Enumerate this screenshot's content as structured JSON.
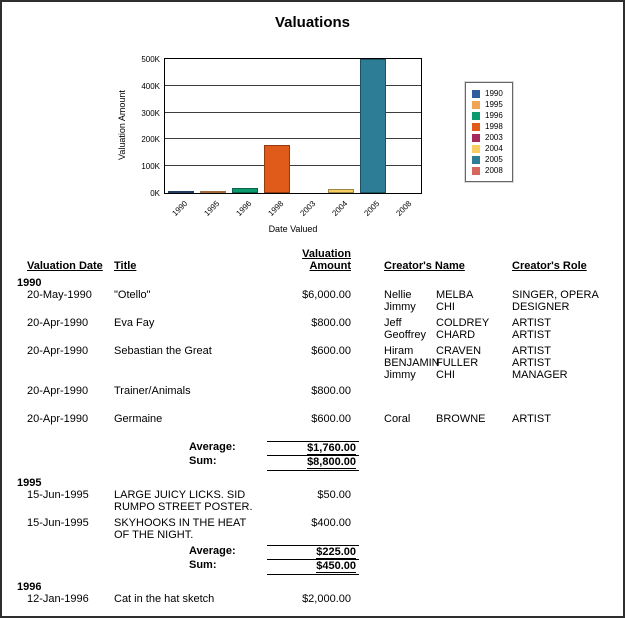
{
  "report": {
    "title": "Valuations"
  },
  "chart_data": {
    "type": "bar",
    "title": "Valuations",
    "xlabel": "Date Valued",
    "ylabel": "Valuation Amount",
    "categories": [
      "1990",
      "1995",
      "1996",
      "1998",
      "2003",
      "2004",
      "2005",
      "2008"
    ],
    "values": [
      8800,
      450,
      18000,
      180000,
      0,
      15000,
      500000,
      0
    ],
    "bar_colors": [
      "#2e5f9c",
      "#f2a456",
      "#0b9a6e",
      "#e05a1a",
      "#a62a5b",
      "#f8ce63",
      "#2e7d96",
      "#d4685c"
    ],
    "ylim": [
      0,
      500000
    ],
    "ytick_labels": [
      "0K",
      "100K",
      "200K",
      "300K",
      "400K",
      "500K"
    ],
    "grid": true,
    "legend": {
      "position": "right",
      "entries": [
        {
          "label": "1990",
          "color": "#2e5f9c"
        },
        {
          "label": "1995",
          "color": "#f2a456"
        },
        {
          "label": "1996",
          "color": "#0b9a6e"
        },
        {
          "label": "1998",
          "color": "#e05a1a"
        },
        {
          "label": "2003",
          "color": "#a62a5b"
        },
        {
          "label": "2004",
          "color": "#f8ce63"
        },
        {
          "label": "2005",
          "color": "#2e7d96"
        },
        {
          "label": "2008",
          "color": "#d4685c"
        }
      ]
    }
  },
  "table": {
    "headers": {
      "date": "Valuation Date",
      "title": "Title",
      "amount": "Valuation Amount",
      "creator_name": "Creator's Name",
      "creator_role": "Creator's Role"
    },
    "summary_labels": {
      "average": "Average:",
      "sum": "Sum:"
    },
    "groups": [
      {
        "year": "1990",
        "rows": [
          {
            "date": "20-May-1990",
            "title": "\"Otello\"",
            "amount": "$6,000.00",
            "creators": [
              {
                "first": "Nellie",
                "last": "MELBA",
                "role": "SINGER, OPERA"
              },
              {
                "first": "Jimmy",
                "last": "CHI",
                "role": "DESIGNER"
              }
            ]
          },
          {
            "date": "20-Apr-1990",
            "title": "Eva Fay",
            "amount": "$800.00",
            "creators": [
              {
                "first": "Jeff",
                "last": "COLDREY",
                "role": "ARTIST"
              },
              {
                "first": "Geoffrey",
                "last": "CHARD",
                "role": "ARTIST"
              }
            ]
          },
          {
            "date": "20-Apr-1990",
            "title": "Sebastian the Great",
            "amount": "$600.00",
            "creators": [
              {
                "first": "Hiram",
                "last": "CRAVEN",
                "role": "ARTIST"
              },
              {
                "first": "BENJAMIN",
                "last": "FULLER",
                "role": "ARTIST"
              },
              {
                "first": "Jimmy",
                "last": "CHI",
                "role": "MANAGER"
              }
            ]
          },
          {
            "date": "20-Apr-1990",
            "title": "Trainer/Animals",
            "amount": "$800.00",
            "creators": []
          },
          {
            "date": "20-Apr-1990",
            "title": "Germaine",
            "amount": "$600.00",
            "creators": [
              {
                "first": "Coral",
                "last": "BROWNE",
                "role": "ARTIST"
              }
            ]
          }
        ],
        "average": "$1,760.00",
        "sum": "$8,800.00"
      },
      {
        "year": "1995",
        "rows": [
          {
            "date": "15-Jun-1995",
            "title": "LARGE JUICY LICKS. SID RUMPO STREET POSTER.",
            "amount": "$50.00",
            "creators": []
          },
          {
            "date": "15-Jun-1995",
            "title": "SKYHOOKS IN THE HEAT OF THE NIGHT.",
            "amount": "$400.00",
            "creators": []
          }
        ],
        "average": "$225.00",
        "sum": "$450.00"
      },
      {
        "year": "1996",
        "rows": [
          {
            "date": "12-Jan-1996",
            "title": "Cat in the hat sketch",
            "amount": "$2,000.00",
            "creators": []
          }
        ]
      }
    ]
  }
}
